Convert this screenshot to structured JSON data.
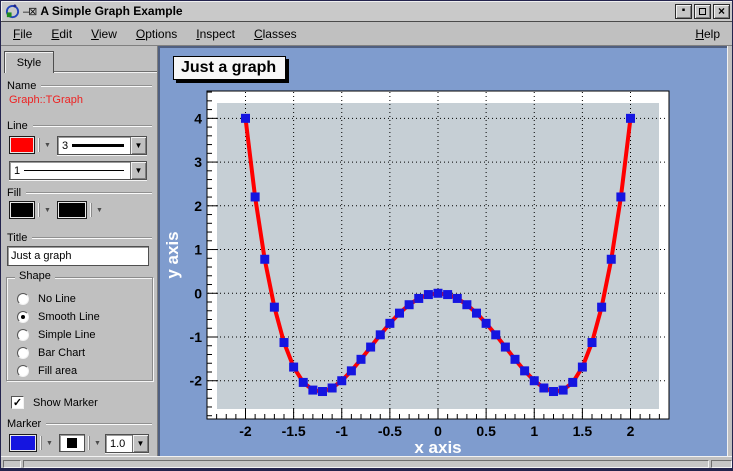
{
  "window": {
    "title": "A Simple Graph Example",
    "pin_glyph": "–⊠",
    "controls": {
      "iconify_glyph": "▪",
      "close_glyph": "×"
    }
  },
  "menu": {
    "items": [
      "File",
      "Edit",
      "View",
      "Options",
      "Inspect",
      "Classes"
    ],
    "help": "Help"
  },
  "editor": {
    "tab_label": "Style",
    "name_label": "Name",
    "name_value": "Graph::TGraph",
    "name_value_color": "#ee2222",
    "line_label": "Line",
    "line_color": "#ff0000",
    "line_width_value": "3",
    "line_style_value": "1",
    "fill_label": "Fill",
    "fill_color": "#000000",
    "fill_pattern_color": "#000000",
    "title_label": "Title",
    "title_value": "Just a graph",
    "shape": {
      "label": "Shape",
      "options": [
        "No Line",
        "Smooth Line",
        "Simple Line",
        "Bar Chart",
        "Fill area"
      ],
      "selected_index": 1
    },
    "show_marker_label": "Show Marker",
    "show_marker_checked": true,
    "marker_label": "Marker",
    "marker_color": "#1515e0",
    "marker_size_value": "1.0"
  },
  "chart_data": {
    "type": "line",
    "title": "Just a graph",
    "xlabel": "x axis",
    "ylabel": "y axis",
    "xlim": [
      -2.4,
      2.4
    ],
    "ylim": [
      -2.875,
      4.625
    ],
    "grid": true,
    "x_major_ticks": [
      -2,
      -1.5,
      -1,
      -0.5,
      0,
      0.5,
      1,
      1.5,
      2
    ],
    "x_tick_labels": [
      "-2",
      "-1.5",
      "-1",
      "-0.5",
      "0",
      "0.5",
      "1",
      "1.5",
      "2"
    ],
    "y_major_ticks": [
      -2,
      -1,
      0,
      1,
      2,
      3,
      4
    ],
    "y_tick_labels": [
      "-2",
      "-1",
      "0",
      "1",
      "2",
      "3",
      "4"
    ],
    "x_minor_step": 0.1,
    "y_minor_step": 0.2,
    "line_color": "#ff0000",
    "line_width": 4,
    "marker_shape": "square",
    "marker_color": "#1515e0",
    "marker_size": 9,
    "frame_fill": "#c6cfd5",
    "pad_fill": "#ffffff",
    "canvas_fill": "#7f9cce",
    "points": [
      [
        -2,
        4
      ],
      [
        -1.9,
        2.2021
      ],
      [
        -1.8,
        0.7776
      ],
      [
        -1.7,
        -0.3179
      ],
      [
        -1.6,
        -1.1264
      ],
      [
        -1.5,
        -1.6875
      ],
      [
        -1.4,
        -2.0384
      ],
      [
        -1.3,
        -2.2139
      ],
      [
        -1.2,
        -2.2464
      ],
      [
        -1.1,
        -2.1659
      ],
      [
        -1,
        -2
      ],
      [
        -0.9,
        -1.7739
      ],
      [
        -0.8,
        -1.5104
      ],
      [
        -0.7,
        -1.2299
      ],
      [
        -0.6,
        -0.9504
      ],
      [
        -0.5,
        -0.6875
      ],
      [
        -0.4,
        -0.4544
      ],
      [
        -0.3,
        -0.2619
      ],
      [
        -0.2,
        -0.1184
      ],
      [
        -0.1,
        -0.0299
      ],
      [
        0,
        0
      ],
      [
        0.1,
        -0.0299
      ],
      [
        0.2,
        -0.1184
      ],
      [
        0.3,
        -0.2619
      ],
      [
        0.4,
        -0.4544
      ],
      [
        0.5,
        -0.6875
      ],
      [
        0.6,
        -0.9504
      ],
      [
        0.7,
        -1.2299
      ],
      [
        0.8,
        -1.5104
      ],
      [
        0.9,
        -1.7739
      ],
      [
        1,
        -2
      ],
      [
        1.1,
        -2.1659
      ],
      [
        1.2,
        -2.2464
      ],
      [
        1.3,
        -2.2139
      ],
      [
        1.4,
        -2.0384
      ],
      [
        1.5,
        -1.6875
      ],
      [
        1.6,
        -1.1264
      ],
      [
        1.7,
        -0.3179
      ],
      [
        1.8,
        0.7776
      ],
      [
        1.9,
        2.2021
      ],
      [
        2,
        4
      ]
    ]
  }
}
